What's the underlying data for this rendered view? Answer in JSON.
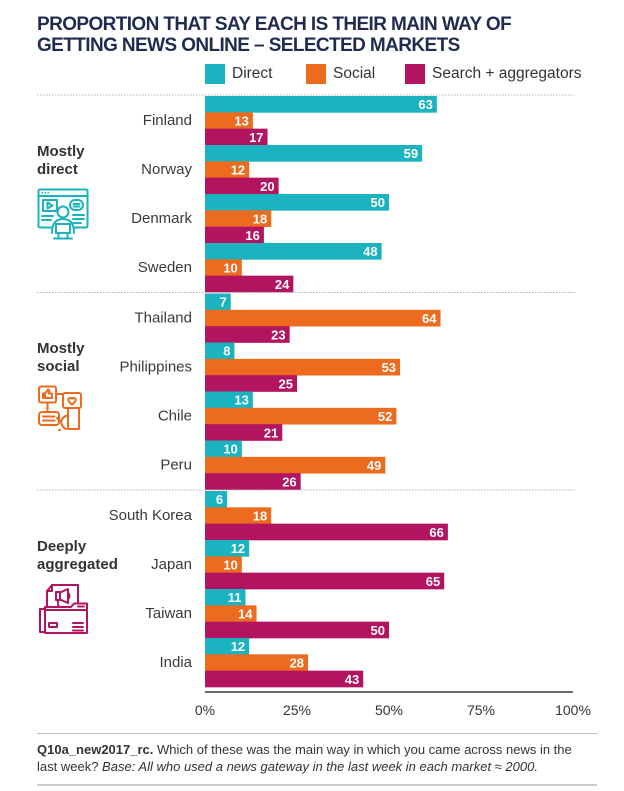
{
  "chart_data": {
    "type": "bar",
    "orientation": "horizontal",
    "title": "PROPORTION THAT SAY EACH IS THEIR MAIN WAY OF GETTING NEWS ONLINE – SELECTED MARKETS",
    "title_lines": [
      "PROPORTION THAT SAY EACH IS THEIR MAIN WAY OF",
      "GETTING NEWS ONLINE – SELECTED MARKETS"
    ],
    "legend": [
      {
        "label": "Direct",
        "color": "#1ab3bf"
      },
      {
        "label": "Social",
        "color": "#ec6b1e"
      },
      {
        "label": "Search + aggregators",
        "color": "#b3145f"
      }
    ],
    "legend_position": "top-right",
    "categories": [
      "Finland",
      "Norway",
      "Denmark",
      "Sweden",
      "Thailand",
      "Philippines",
      "Chile",
      "Peru",
      "South Korea",
      "Japan",
      "Taiwan",
      "India"
    ],
    "series": [
      {
        "name": "Direct",
        "color": "#1ab3bf",
        "values": [
          63,
          59,
          50,
          48,
          7,
          8,
          13,
          10,
          6,
          12,
          11,
          12
        ]
      },
      {
        "name": "Social",
        "color": "#ec6b1e",
        "values": [
          13,
          12,
          18,
          10,
          64,
          53,
          52,
          49,
          18,
          10,
          14,
          28
        ]
      },
      {
        "name": "Search + aggregators",
        "color": "#b3145f",
        "values": [
          17,
          20,
          16,
          24,
          23,
          25,
          21,
          26,
          66,
          65,
          50,
          43
        ]
      }
    ],
    "groups": [
      {
        "label": "Mostly direct",
        "label_lines": [
          "Mostly",
          "direct"
        ],
        "icon": "video-browser-person-icon",
        "color": "#1ab3bf",
        "countries": [
          "Finland",
          "Norway",
          "Denmark",
          "Sweden"
        ]
      },
      {
        "label": "Mostly social",
        "label_lines": [
          "Mostly",
          "social"
        ],
        "icon": "social-media-hand-icon",
        "color": "#ec6b1e",
        "countries": [
          "Thailand",
          "Philippines",
          "Chile",
          "Peru"
        ]
      },
      {
        "label": "Deeply aggregated",
        "label_lines": [
          "Deeply",
          "aggregated"
        ],
        "icon": "megaphone-folder-icon",
        "color": "#b3145f",
        "countries": [
          "South Korea",
          "Japan",
          "Taiwan",
          "India"
        ]
      }
    ],
    "xlabel": "",
    "ylabel": "",
    "xlim": [
      0,
      100
    ],
    "xticks": [
      0,
      25,
      50,
      75,
      100
    ],
    "xtick_labels": [
      "0%",
      "25%",
      "50%",
      "75%",
      "100%"
    ],
    "grid": false,
    "value_labels": true
  },
  "footer": {
    "question_id": "Q10a_new2017_rc.",
    "question_text": "Which of these was the main way in which you came across news in the last week?",
    "base_text": "Base: All who used a news gateway in the last week in each market ≈ 2000."
  }
}
